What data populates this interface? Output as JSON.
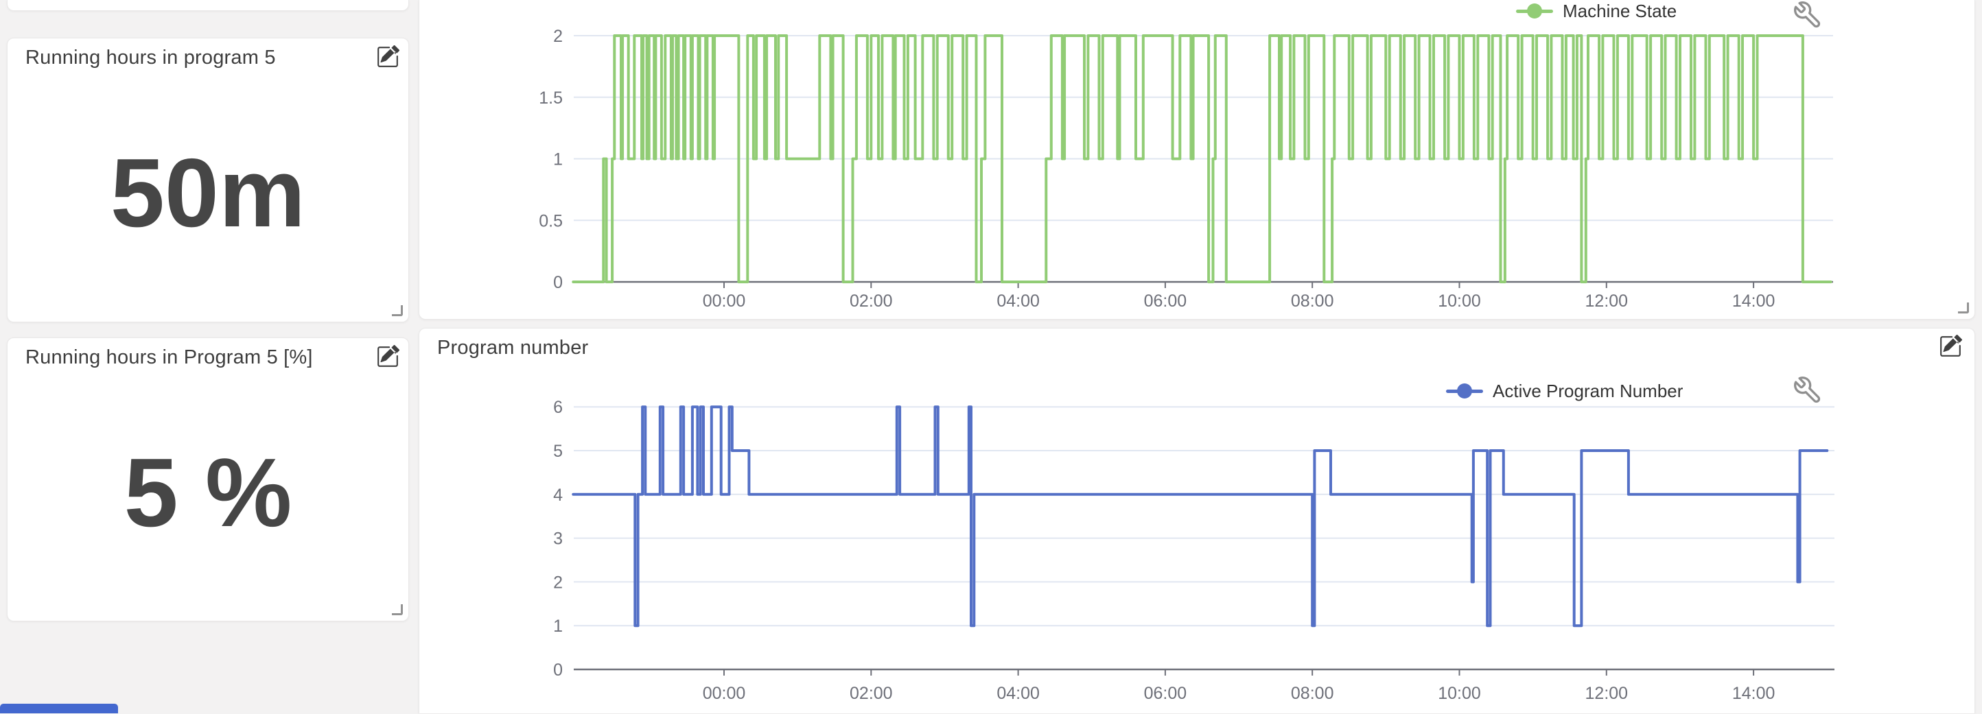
{
  "page": {
    "background": "#f3f2f2"
  },
  "colors": {
    "machine_state_green": "#91cc75",
    "program_number_blue": "#5470c6",
    "axis_label": "#6E7079",
    "gridline": "#E0E6F1",
    "title_text": "#3d3d3d",
    "value_text": "#464646",
    "cutoff_button_blue": "#4368cf"
  },
  "icons": {
    "edit": "pencil-square-icon",
    "settings": "wrench-icon",
    "resize": "resize-corner-icon",
    "legend_marker": "line-with-dot-marker"
  },
  "cards": [
    {
      "title": "Running hours in program 5",
      "value": "50m"
    },
    {
      "title": "Running hours in Program 5 [%]",
      "value": "5 %"
    }
  ],
  "panels": {
    "machine_state": {
      "legend": "Machine State"
    },
    "program_number": {
      "title": "Program number",
      "legend": "Active Program Number"
    }
  },
  "chart_data": [
    {
      "type": "line",
      "step": true,
      "series_name": "Machine State",
      "color": "#91cc75",
      "x_unit": "hours relative to 00:00 (negative = previous day)",
      "x_range": [
        -2.05,
        15.08
      ],
      "ylim": [
        0,
        2
      ],
      "y_ticks": [
        0,
        0.5,
        1,
        1.5,
        2
      ],
      "y_tick_labels": [
        "0",
        "0.5",
        "1",
        "1.5",
        "2"
      ],
      "x_tick_hours": [
        0,
        2,
        4,
        6,
        8,
        10,
        12,
        14
      ],
      "x_tick_labels": [
        "00:00",
        "02:00",
        "04:00",
        "06:00",
        "08:00",
        "10:00",
        "12:00",
        "14:00"
      ],
      "grid": true,
      "legend_position": "top",
      "points": [
        [
          -2.05,
          0
        ],
        [
          -1.64,
          1
        ],
        [
          -1.6,
          0
        ],
        [
          -1.52,
          1
        ],
        [
          -1.49,
          2
        ],
        [
          -1.4,
          1
        ],
        [
          -1.38,
          2
        ],
        [
          -1.3,
          1
        ],
        [
          -1.22,
          2
        ],
        [
          -1.12,
          1
        ],
        [
          -1.1,
          2
        ],
        [
          -1.05,
          1
        ],
        [
          -1.02,
          2
        ],
        [
          -0.95,
          1
        ],
        [
          -0.93,
          2
        ],
        [
          -0.85,
          1
        ],
        [
          -0.8,
          2
        ],
        [
          -0.72,
          1
        ],
        [
          -0.7,
          2
        ],
        [
          -0.65,
          1
        ],
        [
          -0.62,
          2
        ],
        [
          -0.55,
          1
        ],
        [
          -0.53,
          2
        ],
        [
          -0.45,
          1
        ],
        [
          -0.43,
          2
        ],
        [
          -0.35,
          1
        ],
        [
          -0.33,
          2
        ],
        [
          -0.25,
          1
        ],
        [
          -0.23,
          2
        ],
        [
          -0.15,
          1
        ],
        [
          -0.13,
          2
        ],
        [
          0.2,
          0
        ],
        [
          0.32,
          2
        ],
        [
          0.4,
          1
        ],
        [
          0.44,
          2
        ],
        [
          0.55,
          1
        ],
        [
          0.58,
          2
        ],
        [
          0.7,
          1
        ],
        [
          0.74,
          2
        ],
        [
          0.85,
          1
        ],
        [
          1.3,
          2
        ],
        [
          1.45,
          1
        ],
        [
          1.48,
          2
        ],
        [
          1.62,
          0
        ],
        [
          1.75,
          1
        ],
        [
          1.8,
          2
        ],
        [
          1.95,
          1
        ],
        [
          2.0,
          2
        ],
        [
          2.1,
          1
        ],
        [
          2.15,
          2
        ],
        [
          2.3,
          1
        ],
        [
          2.33,
          2
        ],
        [
          2.45,
          1
        ],
        [
          2.5,
          2
        ],
        [
          2.6,
          1
        ],
        [
          2.7,
          2
        ],
        [
          2.85,
          1
        ],
        [
          2.9,
          2
        ],
        [
          3.05,
          1
        ],
        [
          3.1,
          2
        ],
        [
          3.25,
          1
        ],
        [
          3.3,
          2
        ],
        [
          3.43,
          0
        ],
        [
          3.5,
          1
        ],
        [
          3.55,
          2
        ],
        [
          3.78,
          0
        ],
        [
          4.38,
          1
        ],
        [
          4.45,
          2
        ],
        [
          4.6,
          1
        ],
        [
          4.63,
          2
        ],
        [
          4.9,
          1
        ],
        [
          4.95,
          2
        ],
        [
          5.1,
          1
        ],
        [
          5.15,
          2
        ],
        [
          5.35,
          1
        ],
        [
          5.38,
          2
        ],
        [
          5.6,
          1
        ],
        [
          5.7,
          2
        ],
        [
          6.1,
          1
        ],
        [
          6.2,
          2
        ],
        [
          6.35,
          1
        ],
        [
          6.38,
          2
        ],
        [
          6.59,
          0
        ],
        [
          6.65,
          1
        ],
        [
          6.68,
          2
        ],
        [
          6.83,
          0
        ],
        [
          7.42,
          2
        ],
        [
          7.55,
          1
        ],
        [
          7.58,
          2
        ],
        [
          7.7,
          1
        ],
        [
          7.75,
          2
        ],
        [
          7.9,
          1
        ],
        [
          7.95,
          2
        ],
        [
          8.16,
          0
        ],
        [
          8.27,
          1
        ],
        [
          8.3,
          2
        ],
        [
          8.5,
          1
        ],
        [
          8.55,
          2
        ],
        [
          8.75,
          1
        ],
        [
          8.8,
          2
        ],
        [
          9.0,
          1
        ],
        [
          9.05,
          2
        ],
        [
          9.2,
          1
        ],
        [
          9.25,
          2
        ],
        [
          9.4,
          1
        ],
        [
          9.45,
          2
        ],
        [
          9.6,
          1
        ],
        [
          9.65,
          2
        ],
        [
          9.8,
          1
        ],
        [
          9.85,
          2
        ],
        [
          10.0,
          1
        ],
        [
          10.05,
          2
        ],
        [
          10.2,
          1
        ],
        [
          10.25,
          2
        ],
        [
          10.4,
          1
        ],
        [
          10.45,
          2
        ],
        [
          10.56,
          0
        ],
        [
          10.62,
          1
        ],
        [
          10.65,
          2
        ],
        [
          10.8,
          1
        ],
        [
          10.85,
          2
        ],
        [
          11.0,
          1
        ],
        [
          11.05,
          2
        ],
        [
          11.2,
          1
        ],
        [
          11.25,
          2
        ],
        [
          11.4,
          1
        ],
        [
          11.45,
          2
        ],
        [
          11.55,
          1
        ],
        [
          11.6,
          2
        ],
        [
          11.66,
          0
        ],
        [
          11.72,
          1
        ],
        [
          11.75,
          2
        ],
        [
          11.9,
          1
        ],
        [
          11.95,
          2
        ],
        [
          12.1,
          1
        ],
        [
          12.15,
          2
        ],
        [
          12.3,
          1
        ],
        [
          12.35,
          2
        ],
        [
          12.55,
          1
        ],
        [
          12.6,
          2
        ],
        [
          12.75,
          1
        ],
        [
          12.8,
          2
        ],
        [
          12.95,
          1
        ],
        [
          13.0,
          2
        ],
        [
          13.15,
          1
        ],
        [
          13.2,
          2
        ],
        [
          13.35,
          1
        ],
        [
          13.4,
          2
        ],
        [
          13.6,
          1
        ],
        [
          13.65,
          2
        ],
        [
          13.8,
          1
        ],
        [
          13.85,
          2
        ],
        [
          14.0,
          1
        ],
        [
          14.05,
          2
        ],
        [
          14.67,
          0
        ],
        [
          15.05,
          0
        ]
      ]
    },
    {
      "type": "line",
      "step": true,
      "title": "Program number",
      "series_name": "Active Program Number",
      "color": "#5470c6",
      "x_unit": "hours relative to 00:00 (negative = previous day)",
      "x_range": [
        -2.05,
        15.08
      ],
      "ylim": [
        0,
        6
      ],
      "y_ticks": [
        0,
        1,
        2,
        3,
        4,
        5,
        6
      ],
      "y_tick_labels": [
        "0",
        "1",
        "2",
        "3",
        "4",
        "5",
        "6"
      ],
      "x_tick_hours": [
        0,
        2,
        4,
        6,
        8,
        10,
        12,
        14
      ],
      "x_tick_labels": [
        "00:00",
        "02:00",
        "04:00",
        "06:00",
        "08:00",
        "10:00",
        "12:00",
        "14:00"
      ],
      "grid": true,
      "legend_position": "top",
      "points": [
        [
          -2.05,
          4
        ],
        [
          -1.21,
          1
        ],
        [
          -1.17,
          4
        ],
        [
          -1.11,
          6
        ],
        [
          -1.07,
          4
        ],
        [
          -0.87,
          6
        ],
        [
          -0.83,
          4
        ],
        [
          -0.59,
          6
        ],
        [
          -0.55,
          4
        ],
        [
          -0.43,
          6
        ],
        [
          -0.36,
          4
        ],
        [
          -0.32,
          6
        ],
        [
          -0.28,
          4
        ],
        [
          -0.17,
          6
        ],
        [
          -0.04,
          4
        ],
        [
          0.07,
          6
        ],
        [
          0.11,
          5
        ],
        [
          0.34,
          4
        ],
        [
          2.35,
          6
        ],
        [
          2.39,
          4
        ],
        [
          2.87,
          6
        ],
        [
          2.91,
          4
        ],
        [
          3.33,
          6
        ],
        [
          3.36,
          1
        ],
        [
          3.4,
          4
        ],
        [
          8.0,
          1
        ],
        [
          8.03,
          5
        ],
        [
          8.25,
          4
        ],
        [
          10.17,
          2
        ],
        [
          10.19,
          5
        ],
        [
          10.38,
          1
        ],
        [
          10.42,
          5
        ],
        [
          10.6,
          4
        ],
        [
          11.56,
          1
        ],
        [
          11.66,
          5
        ],
        [
          12.3,
          4
        ],
        [
          14.6,
          2
        ],
        [
          14.63,
          5
        ],
        [
          15.0,
          5
        ]
      ]
    }
  ]
}
